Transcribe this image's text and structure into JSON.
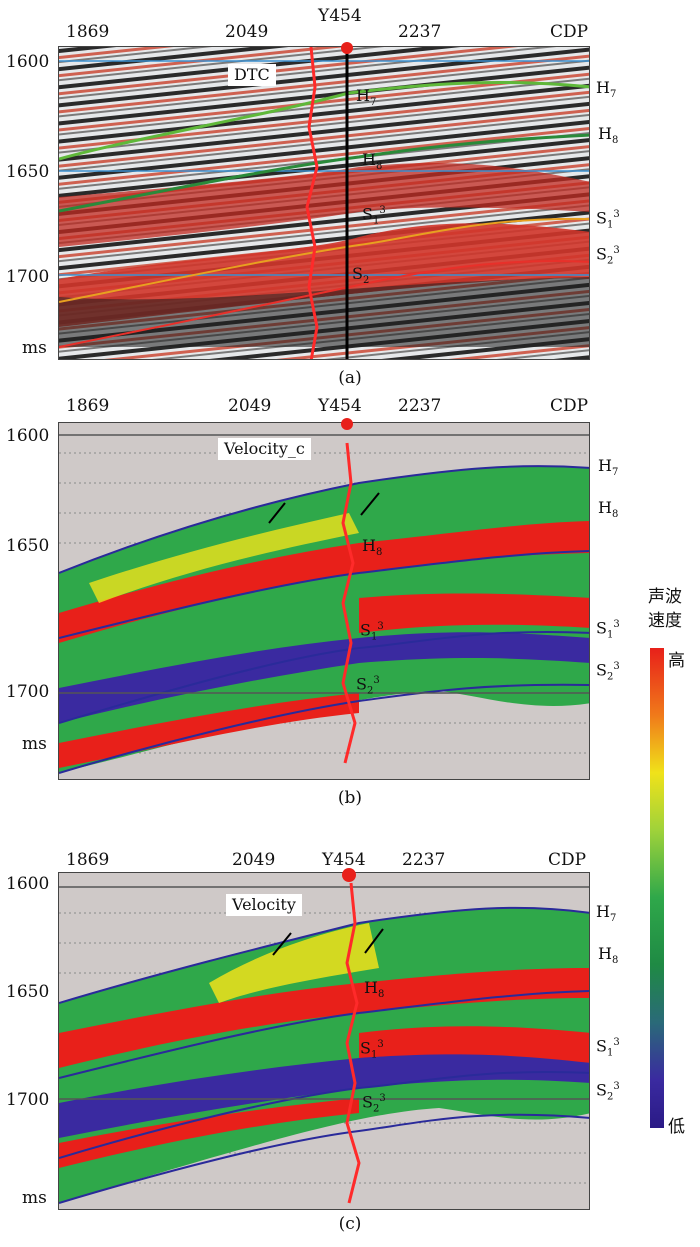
{
  "well": "Y454",
  "cdp_label": "CDP",
  "cdps": [
    "1869",
    "2049",
    "2237"
  ],
  "time_unit": "ms",
  "time_ticks": [
    "1600",
    "1650",
    "1700"
  ],
  "horizons": {
    "h7": {
      "base": "H",
      "sub": "7"
    },
    "h8": {
      "base": "H",
      "sub": "8"
    },
    "s1": {
      "base": "S",
      "sub": "1",
      "sup": "3"
    },
    "s2": {
      "base": "S",
      "sub": "2",
      "sup": "3"
    }
  },
  "panels": [
    {
      "caption": "(a)",
      "curve": "DTC"
    },
    {
      "caption": "(b)",
      "curve": "Velocity_c"
    },
    {
      "caption": "(c)",
      "curve": "Velocity"
    }
  ],
  "colorbar": {
    "title_line1": "声波",
    "title_line2": "速度",
    "high": "高",
    "low": "低"
  },
  "colors": {
    "red": "#e8201a",
    "green": "#2fa84a",
    "blue": "#3a2aa0",
    "yellow": "#f0e21a"
  }
}
